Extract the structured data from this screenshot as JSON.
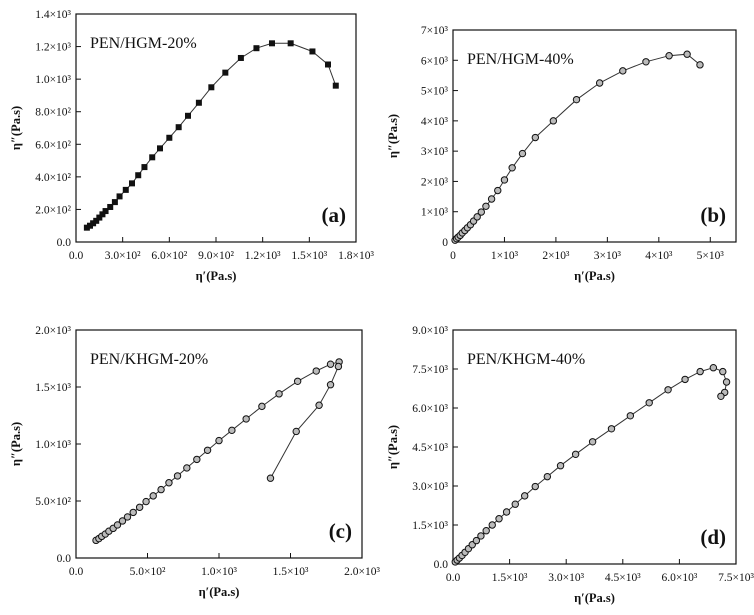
{
  "chart_data": [
    {
      "type": "scatter",
      "title": "PEN/HGM-20%",
      "panel_label": "(a)",
      "xlabel": "η′(Pa.s)",
      "ylabel": "η″(Pa.s)",
      "xlim": [
        0,
        1800
      ],
      "ylim": [
        0,
        1400
      ],
      "x_ticks": [
        {
          "value": 0,
          "label": "0.0"
        },
        {
          "value": 300,
          "label": "3.0×10²"
        },
        {
          "value": 600,
          "label": "6.0×10²"
        },
        {
          "value": 900,
          "label": "9.0×10²"
        },
        {
          "value": 1200,
          "label": "1.2×10³"
        },
        {
          "value": 1500,
          "label": "1.5×10³"
        },
        {
          "value": 1800,
          "label": "1.8×10³"
        }
      ],
      "y_ticks": [
        {
          "value": 0,
          "label": "0.0"
        },
        {
          "value": 200,
          "label": "2.0×10²"
        },
        {
          "value": 400,
          "label": "4.0×10²"
        },
        {
          "value": 600,
          "label": "6.0×10²"
        },
        {
          "value": 800,
          "label": "8.0×10²"
        },
        {
          "value": 1000,
          "label": "1.0×10³"
        },
        {
          "value": 1200,
          "label": "1.2×10³"
        },
        {
          "value": 1400,
          "label": "1.4×10³"
        }
      ],
      "marker": "square",
      "x": [
        70,
        90,
        110,
        130,
        150,
        170,
        190,
        220,
        250,
        280,
        320,
        360,
        400,
        440,
        490,
        540,
        600,
        660,
        720,
        790,
        870,
        960,
        1060,
        1160,
        1260,
        1380,
        1520,
        1620,
        1670
      ],
      "y": [
        88,
        100,
        115,
        130,
        150,
        170,
        190,
        215,
        245,
        280,
        320,
        360,
        410,
        460,
        520,
        575,
        640,
        705,
        775,
        855,
        950,
        1040,
        1130,
        1190,
        1220,
        1220,
        1170,
        1090,
        960
      ]
    },
    {
      "type": "scatter",
      "title": "PEN/HGM-40%",
      "panel_label": "(b)",
      "xlabel": "η′(Pa.s)",
      "ylabel": "η″(Pa.s)",
      "xlim": [
        0,
        5500
      ],
      "ylim": [
        0,
        7000
      ],
      "x_ticks": [
        {
          "value": 0,
          "label": "0"
        },
        {
          "value": 1000,
          "label": "1×10³"
        },
        {
          "value": 2000,
          "label": "2×10³"
        },
        {
          "value": 3000,
          "label": "3×10³"
        },
        {
          "value": 4000,
          "label": "4×10³"
        },
        {
          "value": 5000,
          "label": "5×10³"
        }
      ],
      "y_ticks": [
        {
          "value": 0,
          "label": "0"
        },
        {
          "value": 1000,
          "label": "1×10³"
        },
        {
          "value": 2000,
          "label": "2×10³"
        },
        {
          "value": 3000,
          "label": "3×10³"
        },
        {
          "value": 4000,
          "label": "4×10³"
        },
        {
          "value": 5000,
          "label": "5×10³"
        },
        {
          "value": 6000,
          "label": "6×10³"
        },
        {
          "value": 7000,
          "label": "7×10³"
        }
      ],
      "marker": "circle",
      "x": [
        40,
        70,
        100,
        140,
        180,
        230,
        280,
        340,
        400,
        470,
        550,
        640,
        750,
        870,
        1000,
        1150,
        1350,
        1600,
        1950,
        2400,
        2850,
        3300,
        3750,
        4200,
        4550,
        4800
      ],
      "y": [
        60,
        110,
        160,
        220,
        300,
        380,
        470,
        570,
        690,
        830,
        990,
        1180,
        1420,
        1700,
        2050,
        2450,
        2920,
        3450,
        4000,
        4700,
        5250,
        5650,
        5950,
        6150,
        6200,
        5850
      ]
    },
    {
      "type": "scatter",
      "title": "PEN/KHGM-20%",
      "panel_label": "(c)",
      "xlabel": "η′(Pa.s)",
      "ylabel": "η″(Pa.s)",
      "xlim": [
        0,
        2000
      ],
      "ylim": [
        0,
        2000
      ],
      "x_ticks": [
        {
          "value": 0,
          "label": "0.0"
        },
        {
          "value": 500,
          "label": "5.0×10²"
        },
        {
          "value": 1000,
          "label": "1.0×10³"
        },
        {
          "value": 1500,
          "label": "1.5×10³"
        },
        {
          "value": 2000,
          "label": "2.0×10³"
        }
      ],
      "y_ticks": [
        {
          "value": 0,
          "label": "0.0"
        },
        {
          "value": 500,
          "label": "5.0×10²"
        },
        {
          "value": 1000,
          "label": "1.0×10³"
        },
        {
          "value": 1500,
          "label": "1.5×10³"
        },
        {
          "value": 2000,
          "label": "2.0×10³"
        }
      ],
      "marker": "circle",
      "x": [
        140,
        160,
        180,
        205,
        230,
        260,
        290,
        325,
        360,
        400,
        445,
        490,
        540,
        595,
        650,
        710,
        775,
        845,
        920,
        1000,
        1090,
        1190,
        1300,
        1420,
        1550,
        1680,
        1780,
        1840,
        1835,
        1780,
        1700,
        1540,
        1360
      ],
      "y": [
        155,
        170,
        190,
        210,
        235,
        260,
        290,
        325,
        360,
        400,
        445,
        495,
        545,
        600,
        660,
        720,
        790,
        865,
        945,
        1030,
        1120,
        1220,
        1330,
        1440,
        1550,
        1640,
        1700,
        1720,
        1680,
        1520,
        1340,
        1110,
        700
      ]
    },
    {
      "type": "scatter",
      "title": "PEN/KHGM-40%",
      "panel_label": "(d)",
      "xlabel": "η′(Pa.s)",
      "ylabel": "η″(Pa.s)",
      "xlim": [
        0,
        7500
      ],
      "ylim": [
        0,
        9000
      ],
      "x_ticks": [
        {
          "value": 0,
          "label": "0.0"
        },
        {
          "value": 1500,
          "label": "1.5×10³"
        },
        {
          "value": 3000,
          "label": "3.0×10³"
        },
        {
          "value": 4500,
          "label": "4.5×10³"
        },
        {
          "value": 6000,
          "label": "6.0×10³"
        },
        {
          "value": 7500,
          "label": "7.5×10³"
        }
      ],
      "y_ticks": [
        {
          "value": 0,
          "label": "0.0"
        },
        {
          "value": 1500,
          "label": "1.5×10³"
        },
        {
          "value": 3000,
          "label": "3.0×10³"
        },
        {
          "value": 4500,
          "label": "4.5×10³"
        },
        {
          "value": 6000,
          "label": "6.0×10³"
        },
        {
          "value": 7500,
          "label": "7.5×10³"
        },
        {
          "value": 9000,
          "label": "9.0×10³"
        }
      ],
      "marker": "circle",
      "x": [
        60,
        110,
        170,
        240,
        320,
        410,
        510,
        620,
        740,
        880,
        1040,
        1220,
        1420,
        1650,
        1900,
        2180,
        2500,
        2850,
        3250,
        3700,
        4200,
        4700,
        5200,
        5700,
        6150,
        6550,
        6900,
        7150,
        7250,
        7200,
        7100
      ],
      "y": [
        80,
        150,
        230,
        330,
        450,
        590,
        740,
        900,
        1080,
        1280,
        1500,
        1740,
        2000,
        2300,
        2620,
        2980,
        3360,
        3780,
        4220,
        4700,
        5200,
        5700,
        6200,
        6700,
        7100,
        7400,
        7550,
        7400,
        7000,
        6600,
        6450
      ]
    }
  ]
}
